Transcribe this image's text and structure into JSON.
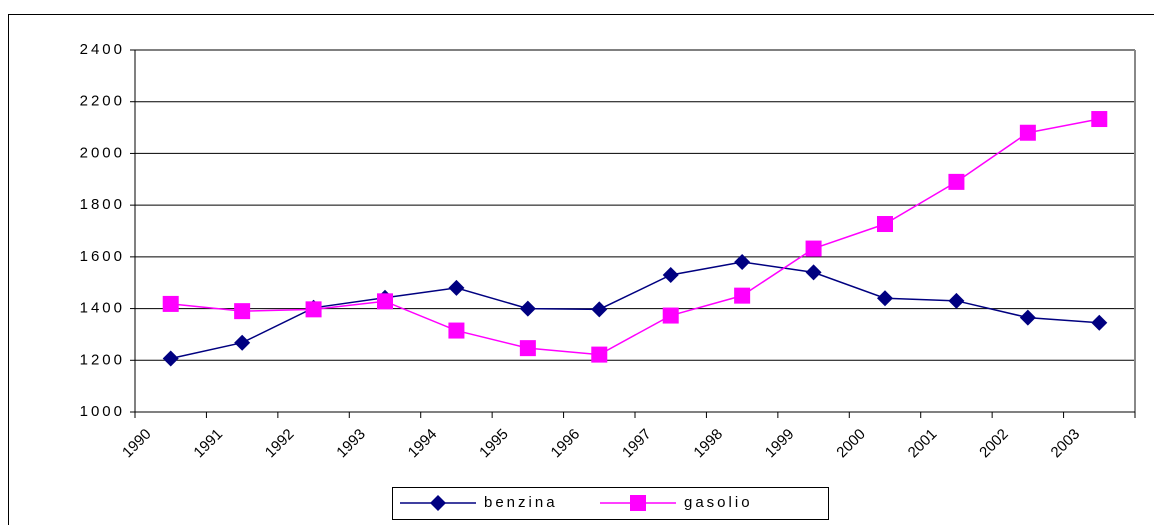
{
  "chart_data": {
    "type": "line",
    "categories": [
      "1990",
      "1991",
      "1992",
      "1993",
      "1994",
      "1995",
      "1996",
      "1997",
      "1998",
      "1999",
      "2000",
      "2001",
      "2002",
      "2003"
    ],
    "series": [
      {
        "name": "benzina",
        "color": "#000080",
        "marker": "diamond",
        "values": [
          1207,
          1268,
          1403,
          1442,
          1480,
          1400,
          1397,
          1530,
          1580,
          1540,
          1440,
          1430,
          1365,
          1345
        ]
      },
      {
        "name": "gasolio",
        "color": "#ff00ff",
        "marker": "square",
        "values": [
          1418,
          1390,
          1397,
          1428,
          1315,
          1247,
          1222,
          1373,
          1450,
          1632,
          1727,
          1890,
          2080,
          2133
        ]
      }
    ],
    "ylim": [
      1000,
      2400
    ],
    "yticks": [
      1000,
      1200,
      1400,
      1600,
      1800,
      2000,
      2200,
      2400
    ],
    "grid": true,
    "legend": "bottom"
  }
}
